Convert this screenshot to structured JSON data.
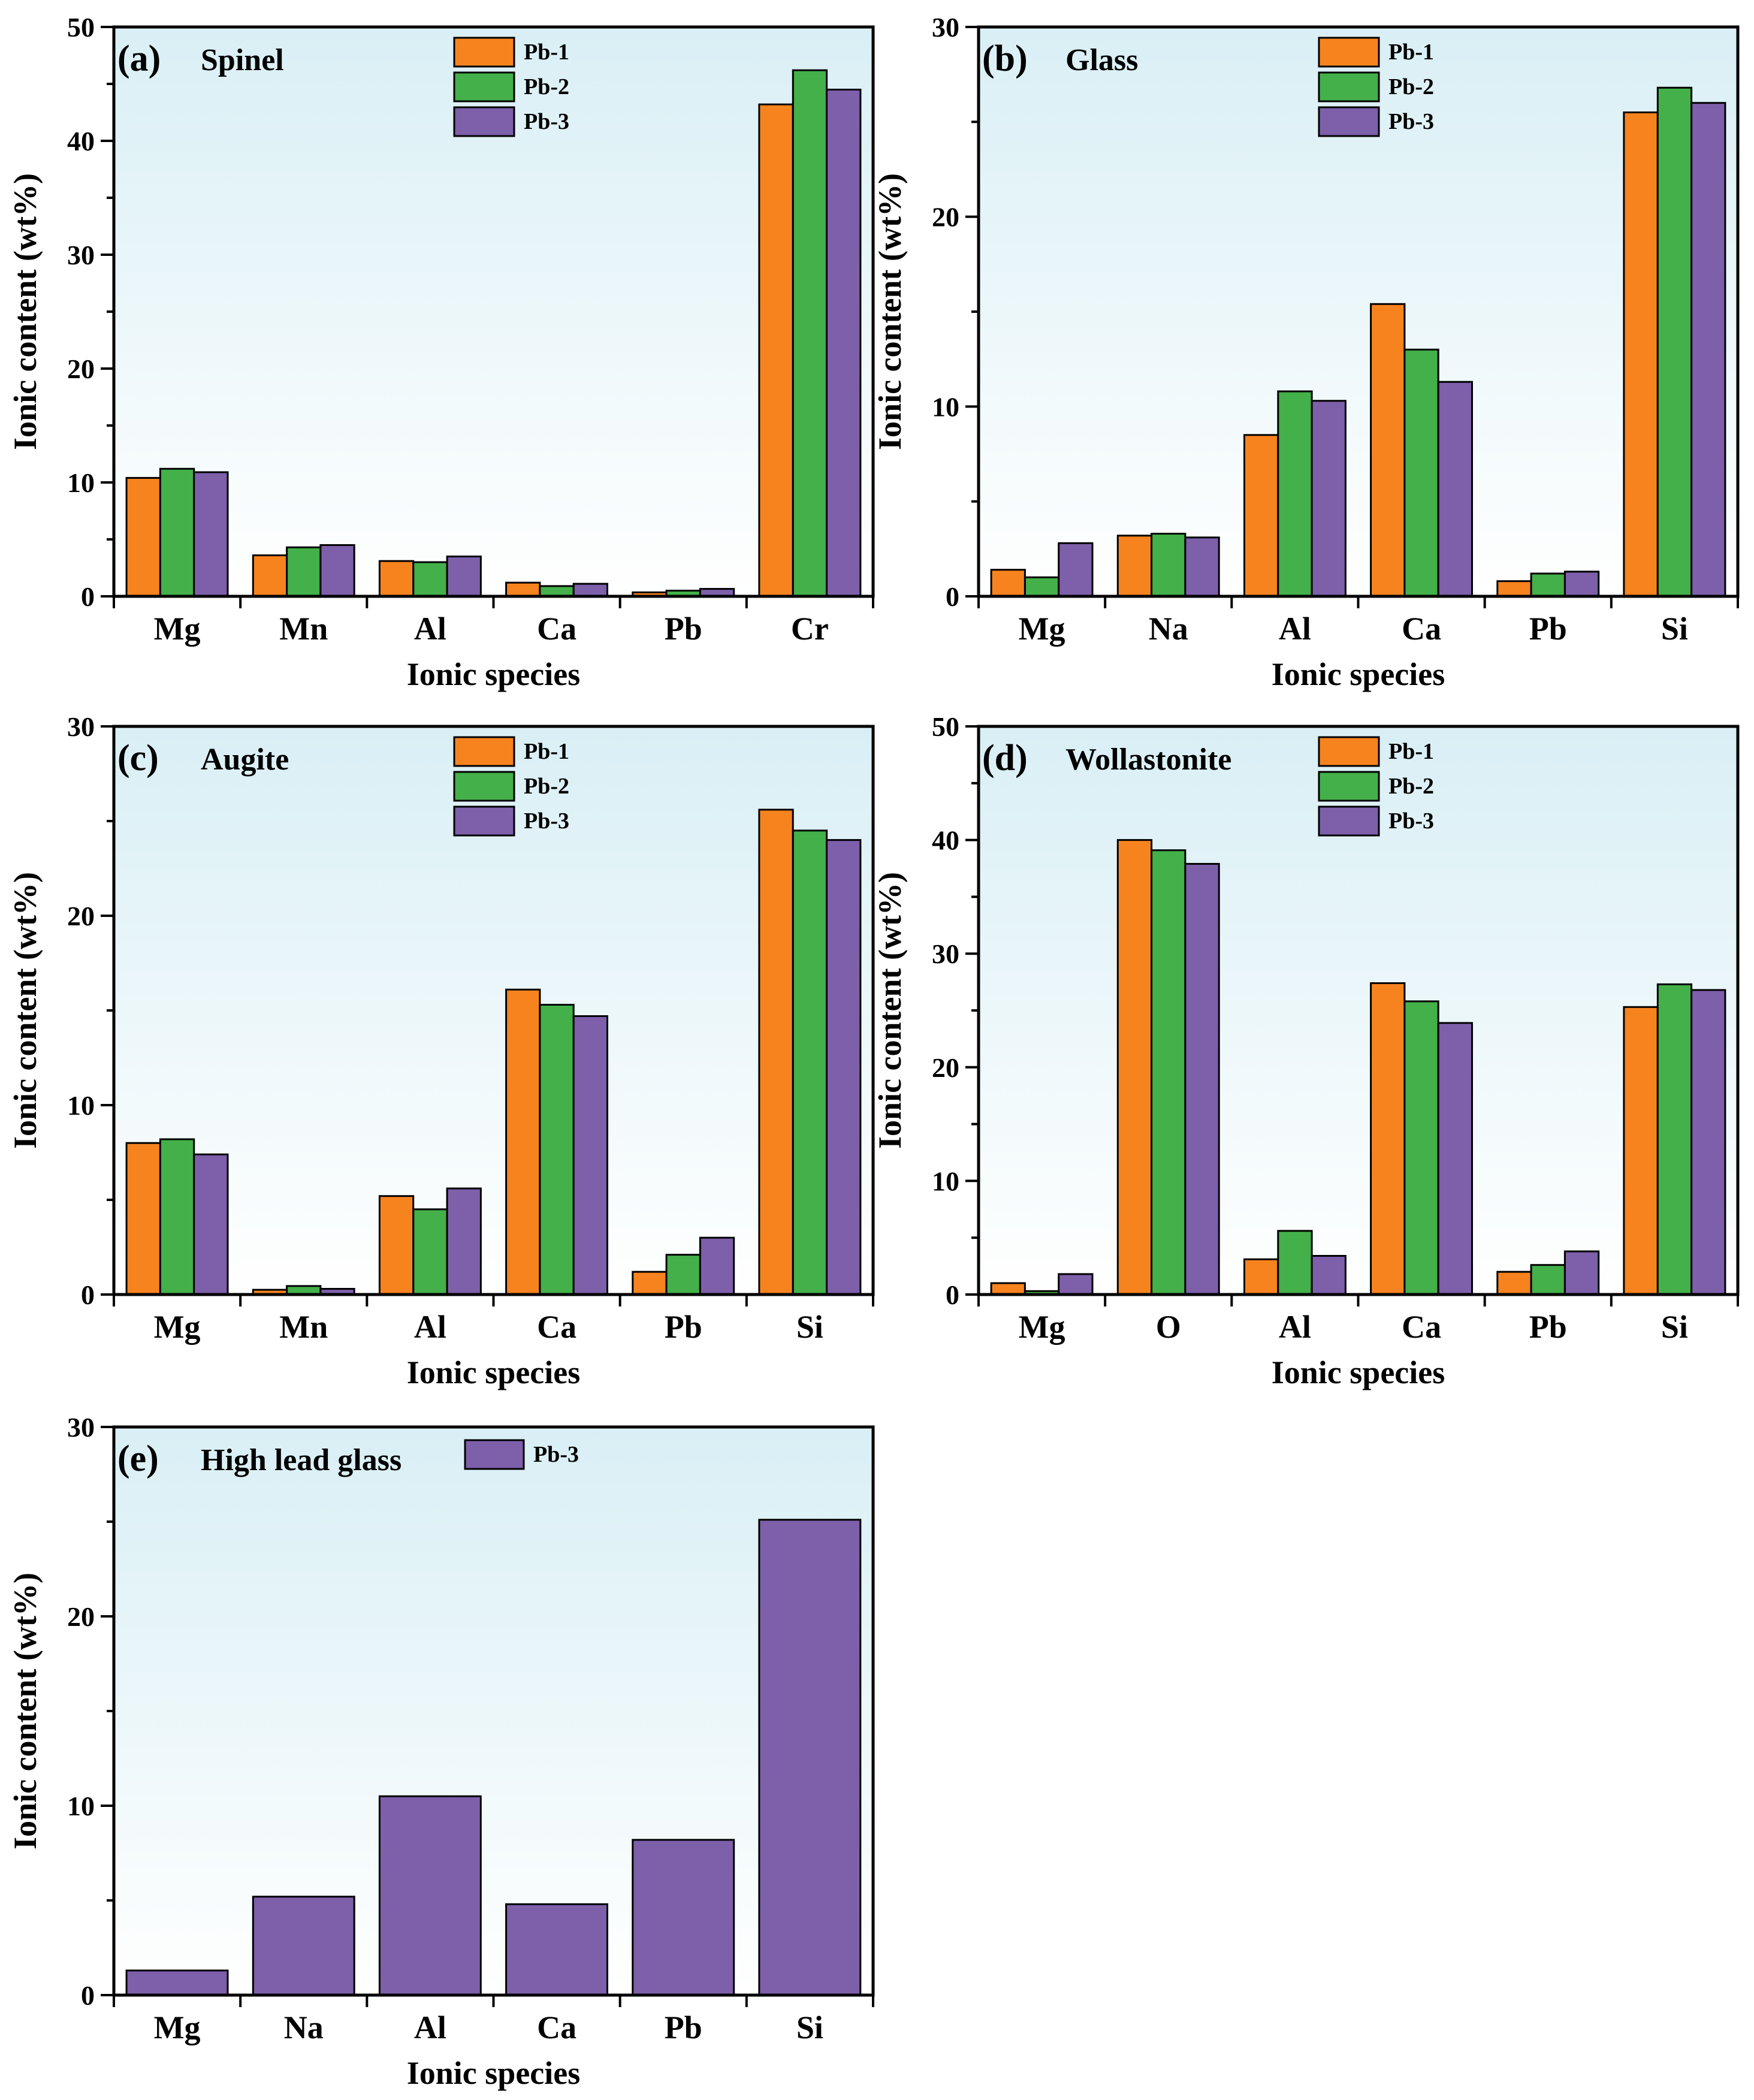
{
  "colors": {
    "pb1": "#f7831f",
    "pb2": "#43b049",
    "pb3": "#7d5faa",
    "bg_top": "#d9eff5",
    "bg_bottom": "#ffffff"
  },
  "chart_data": [
    {
      "type": "bar",
      "panel_label": "(a)",
      "title": "Spinel",
      "categories": [
        "Mg",
        "Mn",
        "Al",
        "Ca",
        "Pb",
        "Cr"
      ],
      "series": [
        {
          "name": "Pb-1",
          "color": "#f7831f",
          "values": [
            10.4,
            3.6,
            3.1,
            1.2,
            0.35,
            43.2
          ]
        },
        {
          "name": "Pb-2",
          "color": "#43b049",
          "values": [
            11.2,
            4.3,
            3.0,
            0.9,
            0.5,
            46.2
          ]
        },
        {
          "name": "Pb-3",
          "color": "#7d5faa",
          "values": [
            10.9,
            4.5,
            3.5,
            1.1,
            0.65,
            44.5
          ]
        }
      ],
      "xlabel": "Ionic species",
      "ylabel": "Ionic content (wt%)",
      "ylim": [
        0,
        50
      ],
      "yticks": [
        0,
        10,
        20,
        30,
        40,
        50
      ],
      "legend": "top-center"
    },
    {
      "type": "bar",
      "panel_label": "(b)",
      "title": "Glass",
      "categories": [
        "Mg",
        "Na",
        "Al",
        "Ca",
        "Pb",
        "Si"
      ],
      "series": [
        {
          "name": "Pb-1",
          "color": "#f7831f",
          "values": [
            1.4,
            3.2,
            8.5,
            15.4,
            0.8,
            25.5
          ]
        },
        {
          "name": "Pb-2",
          "color": "#43b049",
          "values": [
            1.0,
            3.3,
            10.8,
            13.0,
            1.2,
            26.8
          ]
        },
        {
          "name": "Pb-3",
          "color": "#7d5faa",
          "values": [
            2.8,
            3.1,
            10.3,
            11.3,
            1.3,
            26.0
          ]
        }
      ],
      "xlabel": "Ionic species",
      "ylabel": "Ionic content (wt%)",
      "ylim": [
        0,
        30
      ],
      "yticks": [
        0,
        10,
        20,
        30
      ],
      "legend": "top-center"
    },
    {
      "type": "bar",
      "panel_label": "(c)",
      "title": "Augite",
      "categories": [
        "Mg",
        "Mn",
        "Al",
        "Ca",
        "Pb",
        "Si"
      ],
      "series": [
        {
          "name": "Pb-1",
          "color": "#f7831f",
          "values": [
            8.0,
            0.25,
            5.2,
            16.1,
            1.2,
            25.6
          ]
        },
        {
          "name": "Pb-2",
          "color": "#43b049",
          "values": [
            8.2,
            0.45,
            4.5,
            15.3,
            2.1,
            24.5
          ]
        },
        {
          "name": "Pb-3",
          "color": "#7d5faa",
          "values": [
            7.4,
            0.3,
            5.6,
            14.7,
            3.0,
            24.0
          ]
        }
      ],
      "xlabel": "Ionic species",
      "ylabel": "Ionic content (wt%)",
      "ylim": [
        0,
        30
      ],
      "yticks": [
        0,
        10,
        20,
        30
      ],
      "legend": "top-center"
    },
    {
      "type": "bar",
      "panel_label": "(d)",
      "title": "Wollastonite",
      "categories": [
        "Mg",
        "O",
        "Al",
        "Ca",
        "Pb",
        "Si"
      ],
      "series": [
        {
          "name": "Pb-1",
          "color": "#f7831f",
          "values": [
            1.0,
            40.0,
            3.1,
            27.4,
            2.0,
            25.3
          ]
        },
        {
          "name": "Pb-2",
          "color": "#43b049",
          "values": [
            0.3,
            39.1,
            5.6,
            25.8,
            2.6,
            27.3
          ]
        },
        {
          "name": "Pb-3",
          "color": "#7d5faa",
          "values": [
            1.8,
            37.9,
            3.4,
            23.9,
            3.8,
            26.8
          ]
        }
      ],
      "xlabel": "Ionic species",
      "ylabel": "Ionic content (wt%)",
      "ylim": [
        0,
        50
      ],
      "yticks": [
        0,
        10,
        20,
        30,
        40,
        50
      ],
      "legend": "top-center"
    },
    {
      "type": "bar",
      "panel_label": "(e)",
      "title": "High lead glass",
      "categories": [
        "Mg",
        "Na",
        "Al",
        "Ca",
        "Pb",
        "Si"
      ],
      "series": [
        {
          "name": "Pb-3",
          "color": "#7d5faa",
          "values": [
            1.3,
            5.2,
            10.5,
            4.8,
            8.2,
            25.1
          ]
        }
      ],
      "xlabel": "Ionic species",
      "ylabel": "Ionic content (wt%)",
      "ylim": [
        0,
        30
      ],
      "yticks": [
        0,
        10,
        20,
        30
      ],
      "legend": "top-center"
    }
  ]
}
